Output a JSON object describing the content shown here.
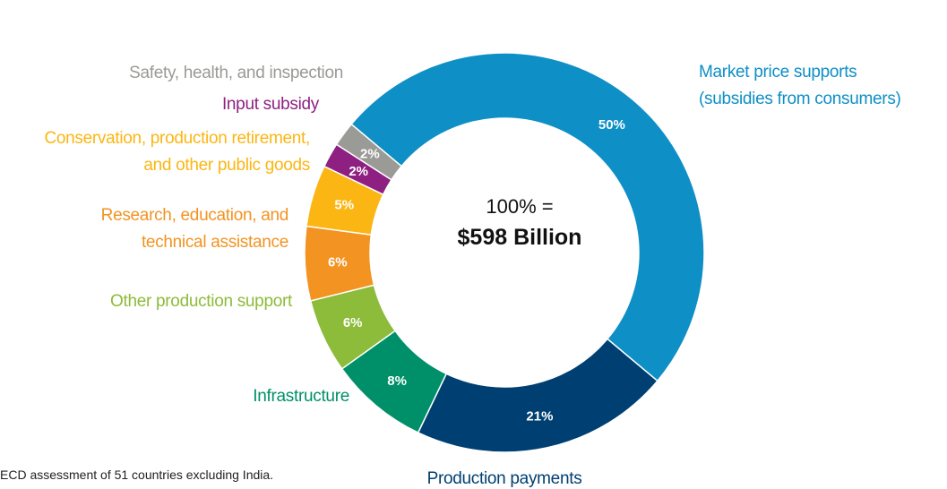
{
  "chart_data": {
    "type": "pie",
    "center_label": "100% =",
    "center_value": "$598 Billion",
    "categories": [
      "Market price supports\n(subsidies from consumers)",
      "Production payments",
      "Infrastructure",
      "Other production support",
      "Research, education, and\ntechnical assistance",
      "Conservation, production retirement,\nand other public goods",
      "Input subsidy",
      "Safety, health, and inspection"
    ],
    "values": [
      50,
      21,
      8,
      6,
      6,
      5,
      2,
      2
    ],
    "value_labels": [
      "50%",
      "21%",
      "8%",
      "6%",
      "6%",
      "5%",
      "2%",
      "2%"
    ],
    "colors": [
      "#0e8fc6",
      "#003f72",
      "#009069",
      "#8dbb3a",
      "#f39322",
      "#fbb613",
      "#8e2081",
      "#9a9b97"
    ],
    "note": "ECD assessment of 51 countries excluding India."
  }
}
